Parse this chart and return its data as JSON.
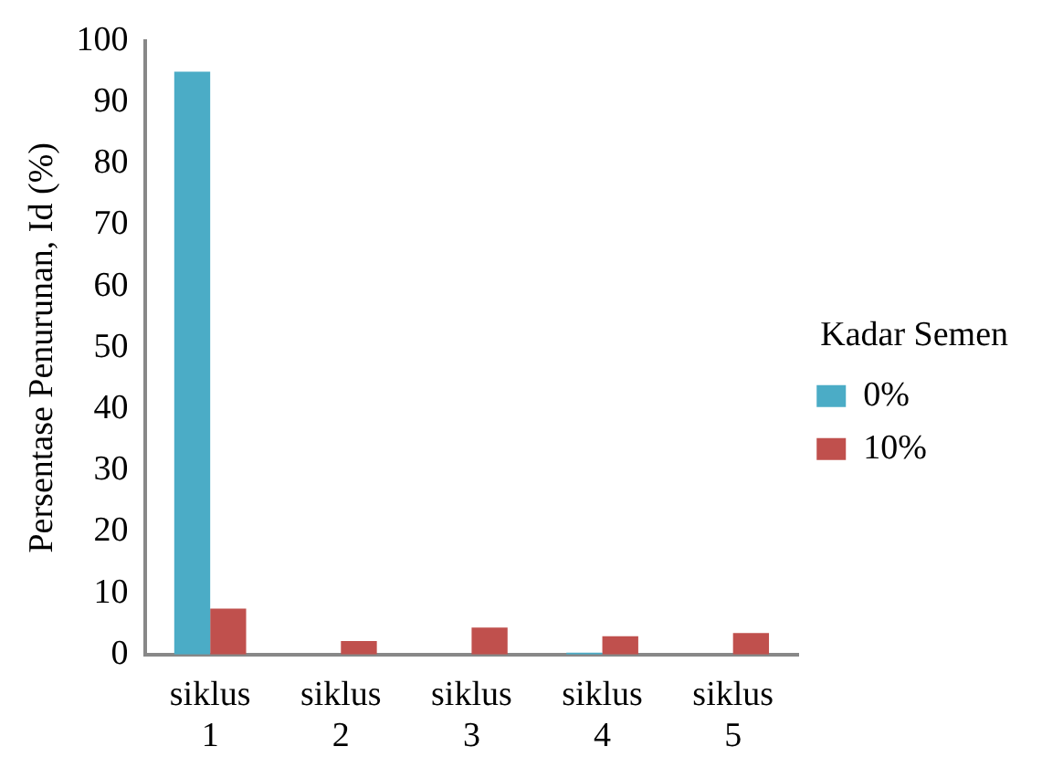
{
  "chart_data": {
    "type": "bar",
    "ylabel": "Persentase Penurunan, Id (%)",
    "legend_title": "Kadar Semen",
    "categories": [
      "siklus 1",
      "siklus 2",
      "siklus 3",
      "siklus 4",
      "siklus 5"
    ],
    "series": [
      {
        "name": "0%",
        "color": "#4bacc6",
        "values": [
          95,
          0,
          0,
          0.3,
          0
        ]
      },
      {
        "name": "10%",
        "color": "#c0504d",
        "values": [
          7.5,
          2.2,
          4.4,
          3.0,
          3.5
        ]
      }
    ],
    "ylim": [
      0,
      100
    ],
    "yticks": [
      0,
      10,
      20,
      30,
      40,
      50,
      60,
      70,
      80,
      90,
      100
    ],
    "grid": false,
    "legend": "right"
  }
}
